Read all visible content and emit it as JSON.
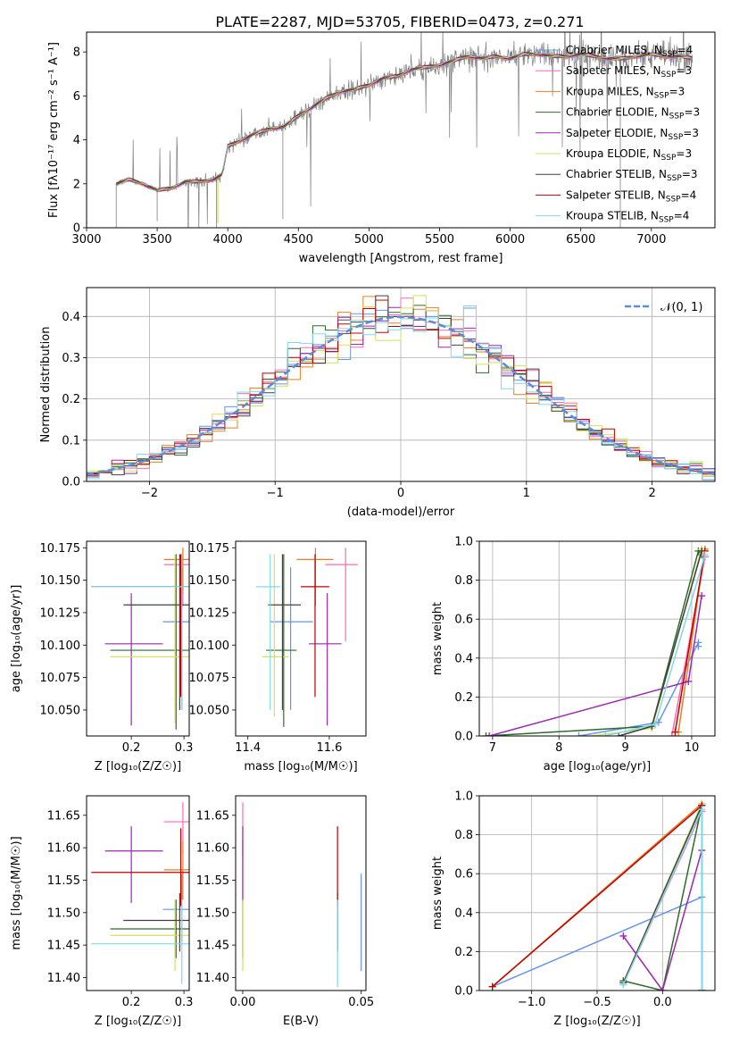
{
  "figure_title": "PLATE=2287, MJD=53705, FIBERID=0473, z=0.271",
  "colors": [
    "#6495ed",
    "#ff69b4",
    "#e87f21",
    "#2e6b2e",
    "#9c27b0",
    "#d4e157",
    "#404040",
    "#c00000",
    "#80d8e8"
  ],
  "chart_data": [
    {
      "type": "line",
      "xlabel": "wavelength [Angstrom, rest frame]",
      "ylabel": "Flux [fλ10⁻¹⁷ erg cm⁻² s⁻¹ A⁻¹]",
      "xlim": [
        3000,
        7450
      ],
      "ylim": [
        0,
        8.9
      ],
      "xticks": [
        "3000",
        "3500",
        "4000",
        "4500",
        "5000",
        "5500",
        "6000",
        "6500",
        "7000"
      ],
      "yticks": [
        "0",
        "2",
        "4",
        "6",
        "8"
      ],
      "legend_position": "right",
      "legend": [
        "Chabrier MILES, NSSP=4",
        "Salpeter MILES, NSSP=3",
        "Kroupa MILES, NSSP=3",
        "Chabrier ELODIE, NSSP=3",
        "Salpeter ELODIE, NSSP=3",
        "Kroupa ELODIE, NSSP=3",
        "Chabrier STELIB, NSSP=3",
        "Salpeter STELIB, NSSP=4",
        "Kroupa STELIB, NSSP=4"
      ],
      "continuum": {
        "x": [
          3210,
          3300,
          3400,
          3500,
          3600,
          3700,
          3800,
          3900,
          3960,
          4000,
          4100,
          4200,
          4300,
          4400,
          4500,
          4600,
          4700,
          4800,
          4900,
          5000,
          5100,
          5200,
          5300,
          5400,
          5500,
          5600,
          5700,
          5800,
          5900,
          6000,
          6100,
          6200,
          6300,
          6400,
          6500,
          6600,
          6700,
          6800,
          6900,
          7000,
          7100,
          7200,
          7290
        ],
        "y": [
          2.0,
          2.2,
          2.0,
          1.7,
          1.8,
          2.1,
          2.1,
          2.2,
          2.4,
          3.7,
          4.0,
          4.3,
          4.5,
          4.6,
          5.1,
          5.5,
          5.9,
          6.2,
          6.3,
          6.5,
          6.8,
          6.9,
          7.2,
          7.3,
          7.4,
          7.6,
          7.8,
          7.7,
          7.8,
          7.7,
          7.9,
          7.9,
          7.8,
          7.8,
          7.9,
          7.8,
          7.7,
          7.7,
          7.8,
          7.9,
          7.8,
          7.8,
          7.7
        ]
      },
      "observed_range": [
        3210,
        7290
      ]
    },
    {
      "type": "histogram",
      "xlabel": "(data-model)/error",
      "ylabel": "Normed distribution",
      "xlim": [
        -2.5,
        2.5
      ],
      "ylim": [
        0,
        0.47
      ],
      "xticks": [
        "−2",
        "−1",
        "0",
        "1",
        "2"
      ],
      "yticks": [
        "0.0",
        "0.1",
        "0.2",
        "0.3",
        "0.4"
      ],
      "grid": true,
      "legend": [
        "𝒩(0, 1)"
      ],
      "legend_position": "top-right",
      "bin_width": 0.1,
      "bin_start": -2.5
    },
    {
      "type": "scatter-errorbar",
      "xlabel": "Z [log₁₀(Z/Z☉)]",
      "ylabel": "age  [log₁₀(age/yr)]",
      "xlim": [
        0.115,
        0.31
      ],
      "ylim": [
        10.03,
        10.18
      ],
      "xticks": [
        "0.2",
        "0.3"
      ],
      "yticks": [
        "10.050",
        "10.075",
        "10.100",
        "10.125",
        "10.150",
        "10.175"
      ],
      "points": [
        {
          "x": 0.296,
          "y": 10.118,
          "xerr": [
            0.26,
            0.31
          ],
          "yerr": [
            10.05,
            10.16
          ]
        },
        {
          "x": 0.298,
          "y": 10.162,
          "xerr": [
            0.262,
            0.31
          ],
          "yerr": [
            10.13,
            10.175
          ]
        },
        {
          "x": 0.298,
          "y": 10.166,
          "xerr": [
            0.262,
            0.31
          ],
          "yerr": [
            10.14,
            10.175
          ]
        },
        {
          "x": 0.285,
          "y": 10.096,
          "xerr": [
            0.16,
            0.31
          ],
          "yerr": [
            10.035,
            10.17
          ]
        },
        {
          "x": 0.2,
          "y": 10.101,
          "xerr": [
            0.15,
            0.26
          ],
          "yerr": [
            10.038,
            10.14
          ]
        },
        {
          "x": 0.283,
          "y": 10.091,
          "xerr": [
            0.16,
            0.31
          ],
          "yerr": [
            10.04,
            10.17
          ]
        },
        {
          "x": 0.292,
          "y": 10.131,
          "xerr": [
            0.185,
            0.31
          ],
          "yerr": [
            10.05,
            10.17
          ]
        },
        {
          "x": 0.294,
          "y": 10.145,
          "xerr": [
            0.124,
            0.31
          ],
          "yerr": [
            10.06,
            10.17
          ]
        },
        {
          "x": 0.296,
          "y": 10.145,
          "xerr": [
            0.124,
            0.31
          ],
          "yerr": [
            10.05,
            10.17
          ]
        }
      ]
    },
    {
      "type": "scatter-errorbar",
      "xlabel": "mass [log₁₀(M/M☉)]",
      "ylabel": "",
      "xlim": [
        11.37,
        11.69
      ],
      "ylim": [
        10.03,
        10.18
      ],
      "xticks": [
        "11.4",
        "11.6"
      ],
      "yticks": [
        "10.050",
        "10.075",
        "10.100",
        "10.125",
        "10.150",
        "10.175"
      ],
      "points": [
        {
          "x": 11.505,
          "y": 10.118,
          "xerr": [
            11.455,
            11.56
          ],
          "yerr": [
            10.05,
            10.16
          ]
        },
        {
          "x": 11.64,
          "y": 10.162,
          "xerr": [
            11.59,
            11.67
          ],
          "yerr": [
            10.103,
            10.175
          ]
        },
        {
          "x": 11.566,
          "y": 10.166,
          "xerr": [
            11.52,
            11.61
          ],
          "yerr": [
            10.13,
            10.175
          ]
        },
        {
          "x": 11.488,
          "y": 10.096,
          "xerr": [
            11.445,
            11.52
          ],
          "yerr": [
            10.037,
            10.17
          ]
        },
        {
          "x": 11.595,
          "y": 10.101,
          "xerr": [
            11.55,
            11.63
          ],
          "yerr": [
            10.038,
            10.14
          ]
        },
        {
          "x": 11.465,
          "y": 10.091,
          "xerr": [
            11.435,
            11.5
          ],
          "yerr": [
            10.045,
            10.17
          ]
        },
        {
          "x": 11.485,
          "y": 10.131,
          "xerr": [
            11.45,
            11.53
          ],
          "yerr": [
            10.05,
            10.17
          ]
        },
        {
          "x": 11.565,
          "y": 10.145,
          "xerr": [
            11.53,
            11.6
          ],
          "yerr": [
            10.06,
            10.17
          ]
        },
        {
          "x": 11.455,
          "y": 10.145,
          "xerr": [
            11.42,
            11.48
          ],
          "yerr": [
            10.05,
            10.17
          ]
        }
      ]
    },
    {
      "type": "line",
      "xlabel": "age  [log₁₀(age/yr)]",
      "ylabel": "mass weight",
      "xlim": [
        6.8,
        10.35
      ],
      "ylim": [
        0,
        1.0
      ],
      "xticks": [
        "7",
        "8",
        "9",
        "10"
      ],
      "yticks": [
        "0.0",
        "0.2",
        "0.4",
        "0.6",
        "0.8",
        "1.0"
      ],
      "grid": true,
      "series": [
        {
          "x": [
            8.3,
            9.5,
            10.1,
            10.1
          ],
          "y": [
            0.0,
            0.07,
            0.48,
            0.46
          ]
        },
        {
          "x": [
            9.7,
            10.2
          ],
          "y": [
            0.0,
            0.92
          ]
        },
        {
          "x": [
            9.8,
            10.2
          ],
          "y": [
            0.02,
            0.96
          ]
        },
        {
          "x": [
            6.9,
            9.4,
            10.1,
            10.15
          ],
          "y": [
            0.0,
            0.05,
            0.95,
            0.93
          ]
        },
        {
          "x": [
            6.95,
            9.95,
            10.15
          ],
          "y": [
            0.0,
            0.28,
            0.72
          ]
        },
        {
          "x": [
            8.5,
            9.4,
            10.15
          ],
          "y": [
            0.0,
            0.04,
            0.96
          ]
        },
        {
          "x": [
            8.9,
            9.4,
            10.15
          ],
          "y": [
            0.0,
            0.05,
            0.95
          ]
        },
        {
          "x": [
            9.75,
            10.2
          ],
          "y": [
            0.02,
            0.95
          ]
        },
        {
          "x": [
            8.7,
            9.45,
            10.2
          ],
          "y": [
            0.0,
            0.06,
            0.93
          ]
        }
      ]
    },
    {
      "type": "scatter-errorbar",
      "xlabel": "Z [log₁₀(Z/Z☉)]",
      "ylabel": "mass [log₁₀(M/M☉)]",
      "xlim": [
        0.115,
        0.31
      ],
      "ylim": [
        11.38,
        11.68
      ],
      "xticks": [
        "0.2",
        "0.3"
      ],
      "yticks": [
        "11.40",
        "11.45",
        "11.50",
        "11.55",
        "11.60",
        "11.65"
      ],
      "points": [
        {
          "x": 0.296,
          "y": 11.505,
          "xerr": [
            0.26,
            0.31
          ],
          "yerr": [
            11.455,
            11.56
          ]
        },
        {
          "x": 0.298,
          "y": 11.64,
          "xerr": [
            0.262,
            0.31
          ],
          "yerr": [
            11.59,
            11.67
          ]
        },
        {
          "x": 0.298,
          "y": 11.566,
          "xerr": [
            0.262,
            0.31
          ],
          "yerr": [
            11.52,
            11.61
          ]
        },
        {
          "x": 0.285,
          "y": 11.475,
          "xerr": [
            0.16,
            0.31
          ],
          "yerr": [
            11.43,
            11.52
          ]
        },
        {
          "x": 0.2,
          "y": 11.595,
          "xerr": [
            0.15,
            0.26
          ],
          "yerr": [
            11.515,
            11.633
          ]
        },
        {
          "x": 0.283,
          "y": 11.465,
          "xerr": [
            0.16,
            0.31
          ],
          "yerr": [
            11.41,
            11.52
          ]
        },
        {
          "x": 0.292,
          "y": 11.488,
          "xerr": [
            0.185,
            0.31
          ],
          "yerr": [
            11.44,
            11.53
          ]
        },
        {
          "x": 0.294,
          "y": 11.562,
          "xerr": [
            0.124,
            0.31
          ],
          "yerr": [
            11.51,
            11.63
          ]
        },
        {
          "x": 0.296,
          "y": 11.452,
          "xerr": [
            0.124,
            0.31
          ],
          "yerr": [
            11.39,
            11.52
          ]
        }
      ]
    },
    {
      "type": "scatter-errorbar",
      "xlabel": "E(B-V)",
      "ylabel": "",
      "xlim": [
        -0.003,
        0.052
      ],
      "ylim": [
        11.38,
        11.68
      ],
      "xticks": [
        "0.00",
        "0.05"
      ],
      "yticks": [
        "11.40",
        "11.45",
        "11.50",
        "11.55",
        "11.60",
        "11.65"
      ],
      "points": [
        {
          "x": 0.05,
          "y": 11.505,
          "yerr": [
            11.41,
            11.56
          ]
        },
        {
          "x": 0.0,
          "y": 11.64,
          "yerr": [
            11.59,
            11.67
          ]
        },
        {
          "x": 0.0,
          "y": 11.566,
          "yerr": [
            11.52,
            11.61
          ]
        },
        {
          "x": 0.0,
          "y": 11.475,
          "yerr": [
            11.43,
            11.52
          ]
        },
        {
          "x": 0.0,
          "y": 11.595,
          "yerr": [
            11.515,
            11.633
          ]
        },
        {
          "x": 0.0,
          "y": 11.465,
          "yerr": [
            11.41,
            11.52
          ]
        },
        {
          "x": 0.04,
          "y": 11.488,
          "yerr": [
            11.44,
            11.53
          ]
        },
        {
          "x": 0.04,
          "y": 11.562,
          "yerr": [
            11.51,
            11.633
          ]
        },
        {
          "x": 0.04,
          "y": 11.452,
          "yerr": [
            11.385,
            11.52
          ]
        }
      ]
    },
    {
      "type": "line",
      "xlabel": "Z [log₁₀(Z/Z☉)]",
      "ylabel": "mass weight",
      "xlim": [
        -1.4,
        0.4
      ],
      "ylim": [
        0,
        1.0
      ],
      "xticks": [
        "−1.0",
        "−0.5",
        "0.0"
      ],
      "yticks": [
        "0.0",
        "0.2",
        "0.4",
        "0.6",
        "0.8",
        "1.0"
      ],
      "grid": true,
      "series": [
        {
          "x": [
            -1.3,
            0.3,
            0.3
          ],
          "y": [
            0.02,
            0.48,
            0.0
          ]
        },
        {
          "x": [
            -0.3,
            0.3,
            0.3
          ],
          "y": [
            0.03,
            0.92,
            0.0
          ]
        },
        {
          "x": [
            -1.3,
            0.3,
            0.3
          ],
          "y": [
            0.02,
            0.96,
            0.0
          ]
        },
        {
          "x": [
            -0.3,
            0.0,
            0.3,
            0.3
          ],
          "y": [
            0.05,
            0.0,
            0.95,
            0.0
          ]
        },
        {
          "x": [
            -0.3,
            0.0,
            0.3
          ],
          "y": [
            0.28,
            0.0,
            0.72
          ]
        },
        {
          "x": [
            -0.3,
            0.3,
            0.3
          ],
          "y": [
            0.04,
            0.96,
            0.0
          ]
        },
        {
          "x": [
            -0.3,
            0.3,
            0.3
          ],
          "y": [
            0.04,
            0.95,
            0.0
          ]
        },
        {
          "x": [
            -1.3,
            0.3,
            0.3
          ],
          "y": [
            0.02,
            0.95,
            0.0
          ]
        },
        {
          "x": [
            -0.3,
            0.3,
            0.3
          ],
          "y": [
            0.03,
            0.93,
            0.0
          ]
        }
      ]
    }
  ]
}
